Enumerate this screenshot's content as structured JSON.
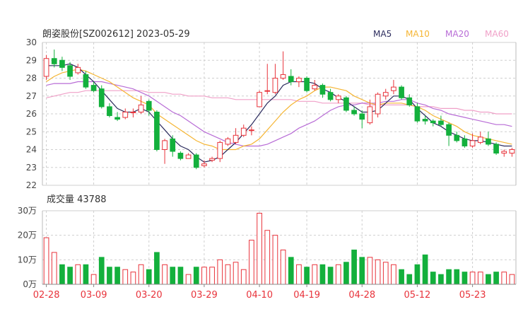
{
  "chart_data": [
    {
      "type": "candlestick",
      "title": "朗姿股份[SZ002612] 2023-05-29",
      "ylim": [
        22,
        30
      ],
      "y_ticks": [
        "30",
        "29",
        "28",
        "27",
        "26",
        "25",
        "24",
        "23",
        "22"
      ],
      "x_tick_labels": [
        "02-28",
        "03-09",
        "03-20",
        "03-29",
        "04-10",
        "04-19",
        "04-28",
        "05-12",
        "05-23"
      ],
      "x_tick_index": [
        0,
        6,
        13,
        20,
        27,
        33,
        40,
        47,
        54
      ],
      "colors": {
        "up": "#e8333b",
        "down": "#13b03c",
        "grid": "#cfcfcf",
        "MA5": "#2c2c5e",
        "MA10": "#f5b533",
        "MA20": "#b86cd6",
        "MA60": "#f0a0c8"
      },
      "legend": [
        {
          "name": "MA5",
          "color": "#2c2c5e"
        },
        {
          "name": "MA10",
          "color": "#f5b533"
        },
        {
          "name": "MA20",
          "color": "#b86cd6"
        },
        {
          "name": "MA60",
          "color": "#f0a0c8"
        }
      ],
      "candles": [
        [
          28.1,
          29.1,
          29.3,
          27.9
        ],
        [
          29.1,
          28.8,
          29.6,
          28.6
        ],
        [
          29.0,
          28.6,
          29.2,
          28.4
        ],
        [
          28.7,
          28.1,
          28.9,
          27.9
        ],
        [
          28.3,
          28.6,
          28.8,
          28.2
        ],
        [
          28.2,
          27.5,
          28.4,
          27.4
        ],
        [
          27.6,
          27.3,
          27.8,
          27.2
        ],
        [
          27.4,
          26.4,
          27.6,
          26.3
        ],
        [
          26.4,
          25.9,
          26.6,
          25.8
        ],
        [
          25.8,
          25.7,
          26.1,
          25.6
        ],
        [
          25.8,
          26.1,
          26.3,
          25.7
        ],
        [
          26.1,
          26.1,
          26.3,
          25.8
        ],
        [
          26.1,
          26.5,
          27.0,
          26.0
        ],
        [
          26.7,
          26.2,
          26.8,
          25.9
        ],
        [
          26.1,
          24.0,
          26.2,
          23.9
        ],
        [
          24.0,
          24.5,
          24.6,
          23.2
        ],
        [
          24.6,
          23.9,
          24.8,
          23.6
        ],
        [
          23.8,
          23.5,
          23.9,
          23.4
        ],
        [
          23.5,
          23.7,
          23.8,
          23.5
        ],
        [
          23.7,
          23.0,
          23.8,
          22.9
        ],
        [
          23.1,
          23.2,
          23.4,
          23.0
        ],
        [
          23.4,
          23.5,
          23.6,
          23.3
        ],
        [
          23.5,
          24.4,
          24.5,
          23.3
        ],
        [
          24.3,
          24.6,
          24.7,
          24.2
        ],
        [
          24.4,
          24.8,
          25.2,
          24.3
        ],
        [
          24.8,
          25.2,
          25.4,
          24.7
        ],
        [
          25.1,
          25.1,
          25.3,
          24.8
        ],
        [
          26.4,
          27.2,
          27.3,
          26.4
        ],
        [
          27.3,
          27.3,
          28.8,
          27.1
        ],
        [
          27.2,
          28.0,
          28.8,
          27.1
        ],
        [
          28.0,
          28.2,
          29.5,
          27.9
        ],
        [
          28.1,
          27.8,
          28.5,
          27.6
        ],
        [
          27.8,
          28.0,
          28.1,
          27.5
        ],
        [
          28.0,
          27.3,
          28.1,
          27.2
        ],
        [
          27.4,
          27.6,
          27.9,
          27.3
        ],
        [
          27.6,
          27.1,
          27.7,
          26.9
        ],
        [
          27.2,
          26.8,
          27.4,
          26.7
        ],
        [
          26.8,
          27.0,
          27.1,
          26.6
        ],
        [
          26.9,
          26.2,
          27.0,
          26.1
        ],
        [
          26.2,
          26.0,
          26.4,
          25.9
        ],
        [
          26.0,
          25.7,
          26.2,
          25.2
        ],
        [
          25.5,
          26.4,
          26.8,
          25.4
        ],
        [
          26.0,
          27.1,
          27.2,
          25.8
        ],
        [
          27.0,
          27.2,
          27.4,
          26.8
        ],
        [
          27.3,
          27.5,
          27.9,
          27.1
        ],
        [
          27.5,
          26.9,
          27.6,
          26.8
        ],
        [
          26.9,
          26.5,
          27.1,
          26.4
        ],
        [
          26.4,
          25.6,
          26.6,
          25.5
        ],
        [
          25.7,
          25.6,
          25.9,
          25.4
        ],
        [
          25.6,
          25.5,
          25.7,
          25.3
        ],
        [
          25.6,
          25.4,
          25.9,
          25.3
        ],
        [
          25.4,
          24.8,
          25.5,
          24.2
        ],
        [
          24.8,
          24.5,
          25.0,
          24.4
        ],
        [
          24.6,
          24.2,
          24.8,
          24.1
        ],
        [
          24.2,
          24.5,
          24.9,
          24.1
        ],
        [
          24.4,
          24.7,
          25.0,
          24.3
        ],
        [
          24.6,
          24.3,
          25.0,
          24.2
        ],
        [
          24.3,
          23.8,
          24.4,
          23.7
        ],
        [
          23.8,
          23.9,
          24.0,
          23.6
        ],
        [
          23.8,
          24.0,
          24.1,
          23.6
        ]
      ],
      "ma": {
        "MA5": [
          28.7,
          28.7,
          28.7,
          28.8,
          28.6,
          28.2,
          27.8,
          27.3,
          26.8,
          26.3,
          26.1,
          26.1,
          26.3,
          26.1,
          25.6,
          25.1,
          24.6,
          24.2,
          24.0,
          23.6,
          23.3,
          23.4,
          23.6,
          24.0,
          24.4,
          24.9,
          25.4,
          26.0,
          26.6,
          27.0,
          27.6,
          27.8,
          27.8,
          27.8,
          27.7,
          27.4,
          27.2,
          26.9,
          26.7,
          26.4,
          26.1,
          26.1,
          26.2,
          26.6,
          27.0,
          27.0,
          26.8,
          26.3,
          25.9,
          25.5,
          25.3,
          25.0,
          24.8,
          24.6,
          24.5,
          24.5,
          24.4,
          24.3,
          24.2,
          24.2
        ],
        "MA10": [
          27.8,
          28.1,
          28.3,
          28.4,
          28.5,
          28.4,
          28.2,
          28.0,
          27.8,
          27.5,
          27.2,
          26.9,
          26.7,
          26.5,
          26.0,
          25.7,
          25.4,
          25.1,
          24.8,
          24.5,
          24.3,
          24.2,
          24.0,
          24.0,
          24.0,
          24.2,
          24.3,
          24.6,
          25.1,
          25.6,
          26.1,
          26.5,
          26.8,
          27.0,
          27.3,
          27.5,
          27.5,
          27.4,
          27.3,
          27.0,
          26.8,
          26.6,
          26.5,
          26.6,
          26.6,
          26.6,
          26.5,
          26.4,
          26.2,
          25.9,
          25.7,
          25.5,
          25.3,
          25.0,
          24.8,
          24.7,
          24.6,
          24.5,
          24.4,
          24.3
        ],
        "MA20": [
          27.6,
          27.7,
          27.7,
          27.7,
          27.8,
          27.8,
          27.8,
          27.8,
          27.7,
          27.6,
          27.5,
          27.4,
          27.2,
          27.0,
          26.7,
          26.4,
          26.1,
          25.9,
          25.6,
          25.3,
          25.0,
          24.8,
          24.6,
          24.4,
          24.3,
          24.2,
          24.2,
          24.2,
          24.3,
          24.5,
          24.7,
          24.9,
          25.2,
          25.4,
          25.6,
          25.9,
          26.2,
          26.4,
          26.5,
          26.5,
          26.6,
          26.6,
          26.6,
          26.7,
          26.7,
          26.8,
          26.8,
          26.6,
          26.5,
          26.3,
          26.2,
          26.0,
          25.9,
          25.8,
          25.7,
          25.6,
          25.5,
          25.4,
          25.4,
          25.3
        ],
        "MA60": [
          26.9,
          27.0,
          27.1,
          27.2,
          27.2,
          27.3,
          27.3,
          27.3,
          27.3,
          27.3,
          27.3,
          27.3,
          27.3,
          27.2,
          27.2,
          27.2,
          27.1,
          27.1,
          27.0,
          27.0,
          27.0,
          26.9,
          26.9,
          26.9,
          26.8,
          26.8,
          26.8,
          26.8,
          26.8,
          26.8,
          26.8,
          26.8,
          26.7,
          26.7,
          26.7,
          26.6,
          26.6,
          26.6,
          26.6,
          26.6,
          26.6,
          26.5,
          26.5,
          26.5,
          26.5,
          26.5,
          26.5,
          26.4,
          26.4,
          26.4,
          26.3,
          26.3,
          26.3,
          26.2,
          26.2,
          26.1,
          26.1,
          26.0,
          26.0,
          26.0
        ]
      }
    },
    {
      "type": "bar",
      "title": "成交量 43788",
      "ylim": [
        0,
        30
      ],
      "y_ticks": [
        "30万",
        "20万",
        "10万",
        "0万"
      ],
      "values": [
        19,
        13,
        8,
        7,
        8,
        8,
        4,
        11,
        7,
        7,
        6,
        5,
        8,
        6,
        13,
        8,
        7,
        7,
        4,
        7,
        7,
        7,
        10,
        8,
        9,
        6,
        18,
        29,
        22,
        20,
        14,
        11,
        8,
        7,
        8,
        8,
        7,
        8,
        9,
        14,
        11,
        11,
        10,
        9,
        8,
        6,
        4,
        8,
        12,
        5,
        4,
        6,
        6,
        5,
        5,
        5,
        4,
        5,
        5,
        4
      ],
      "up": [
        true,
        true,
        false,
        false,
        true,
        false,
        true,
        false,
        false,
        false,
        true,
        true,
        true,
        false,
        false,
        true,
        false,
        false,
        true,
        false,
        true,
        true,
        true,
        true,
        true,
        true,
        true,
        true,
        true,
        true,
        true,
        false,
        true,
        false,
        true,
        false,
        false,
        true,
        false,
        false,
        false,
        true,
        true,
        true,
        true,
        false,
        false,
        false,
        false,
        false,
        false,
        false,
        false,
        false,
        true,
        true,
        false,
        false,
        true,
        true
      ]
    }
  ]
}
